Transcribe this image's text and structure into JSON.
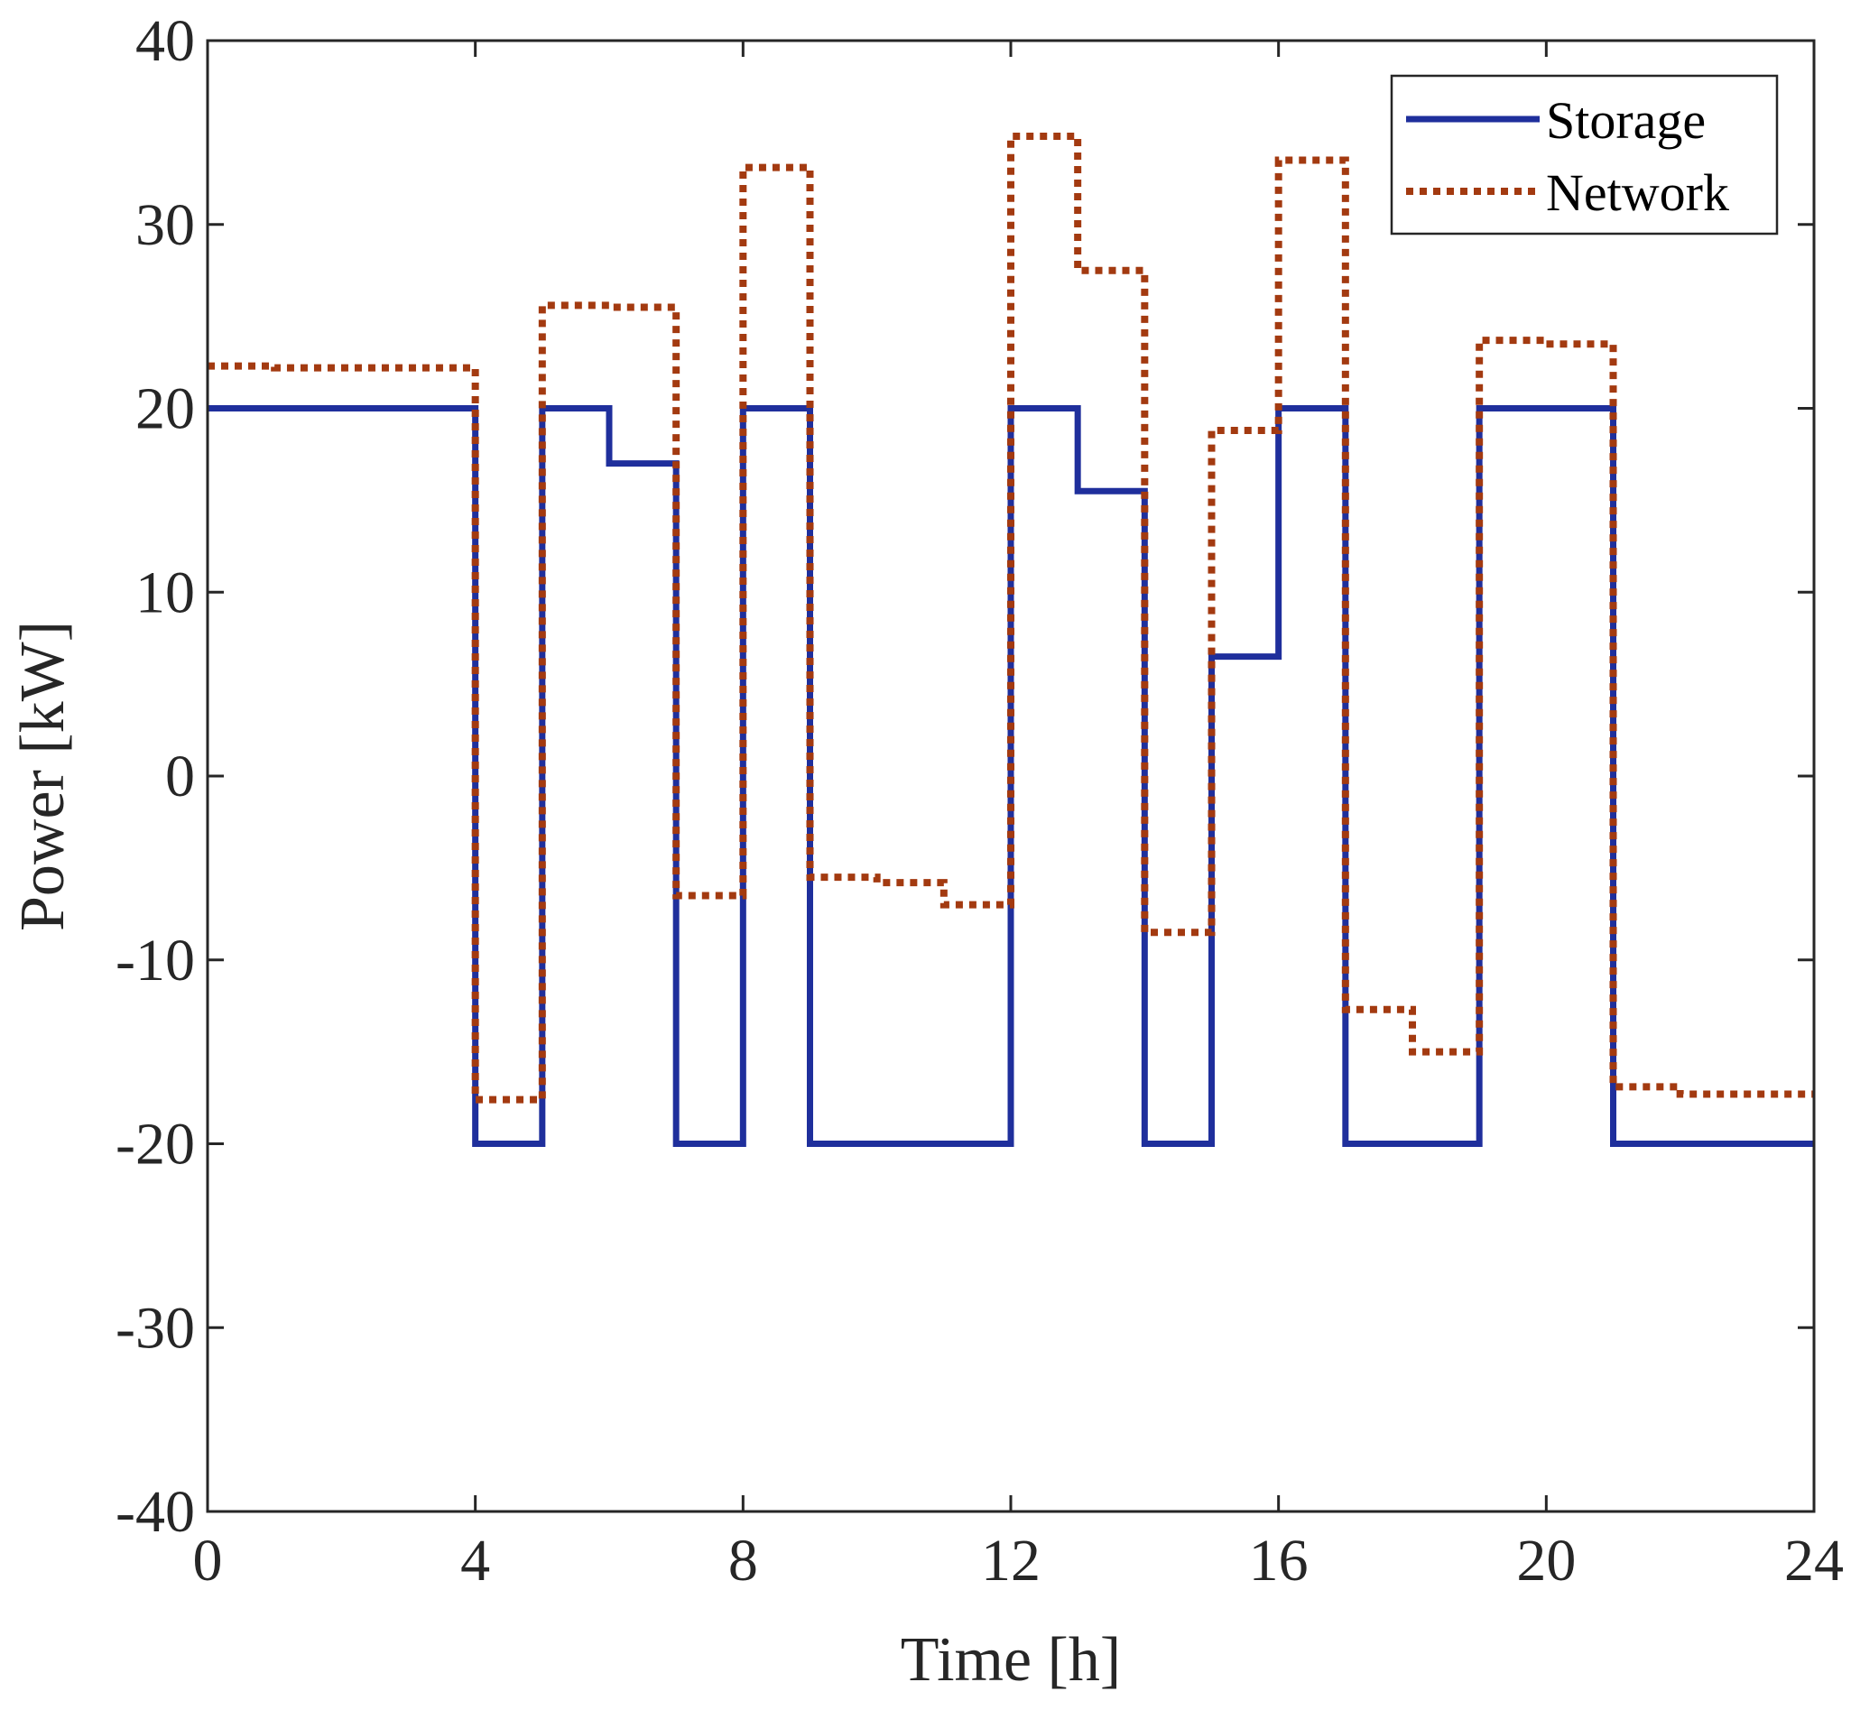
{
  "chart_data": {
    "type": "line",
    "step": "post",
    "title": "",
    "xlabel": "Time [h]",
    "ylabel": "Power [kW]",
    "xlim": [
      0,
      24
    ],
    "ylim": [
      -40,
      40
    ],
    "xticks": [
      0,
      4,
      8,
      12,
      16,
      20,
      24
    ],
    "yticks": [
      -40,
      -30,
      -20,
      -10,
      0,
      10,
      20,
      30,
      40
    ],
    "xtick_labels": [
      "0",
      "4",
      "8",
      "12",
      "16",
      "20",
      "24"
    ],
    "ytick_labels": [
      "-40",
      "-30",
      "-20",
      "-10",
      "0",
      "10",
      "20",
      "30",
      "40"
    ],
    "grid": false,
    "box": true,
    "legend_position": "top-right",
    "series": [
      {
        "name": "Storage",
        "style": "solid",
        "color": "#1f2f9c",
        "x": [
          0,
          1,
          2,
          3,
          4,
          5,
          6,
          7,
          8,
          9,
          10,
          11,
          12,
          13,
          14,
          15,
          16,
          17,
          18,
          19,
          20,
          21,
          22,
          23,
          24
        ],
        "values": [
          20,
          20,
          20,
          20,
          -20,
          20,
          17,
          -20,
          20,
          -20,
          -20,
          -20,
          20,
          15.5,
          -20,
          6.5,
          20,
          -20,
          -20,
          20,
          20,
          -20,
          -20,
          -20,
          -20
        ]
      },
      {
        "name": "Network",
        "style": "dotted",
        "color": "#a33a10",
        "x": [
          0,
          1,
          2,
          3,
          4,
          5,
          6,
          7,
          8,
          9,
          10,
          11,
          12,
          13,
          14,
          15,
          16,
          17,
          18,
          19,
          20,
          21,
          22,
          23,
          24
        ],
        "values": [
          22.3,
          22.2,
          22.2,
          22.2,
          -17.6,
          25.6,
          25.5,
          -6.5,
          33.1,
          -5.5,
          -5.8,
          -7.0,
          34.8,
          27.5,
          -8.5,
          18.8,
          33.5,
          -12.7,
          -15.0,
          23.7,
          23.5,
          -16.9,
          -17.3,
          -17.3,
          -17.3
        ]
      }
    ]
  }
}
